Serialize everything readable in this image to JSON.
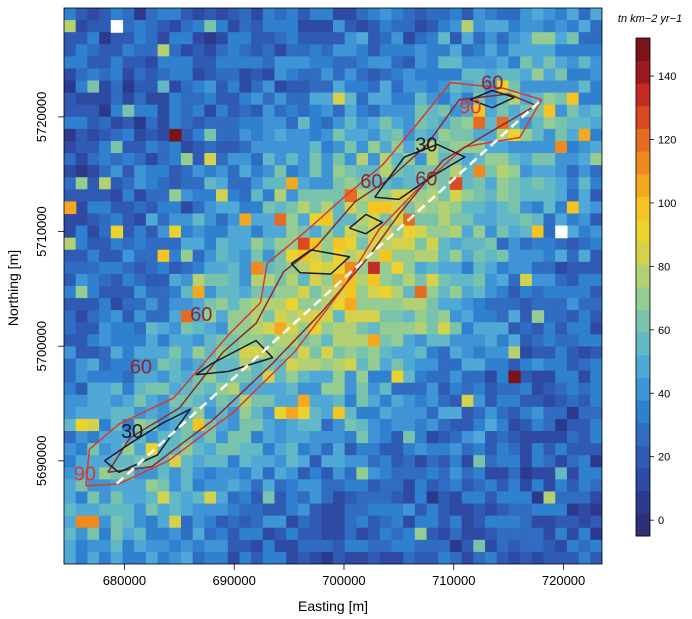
{
  "chart_data": {
    "type": "heatmap",
    "xlabel": "Easting [m]",
    "ylabel": "Northing [m]",
    "xlim": [
      674500,
      723500
    ],
    "ylim": [
      5681000,
      5729500
    ],
    "x_ticks": [
      680000,
      690000,
      700000,
      710000,
      720000
    ],
    "x_tick_labels": [
      "680000",
      "690000",
      "700000",
      "710000",
      "720000"
    ],
    "y_ticks": [
      5690000,
      5700000,
      5710000,
      5720000
    ],
    "y_tick_labels": [
      "5690000",
      "5700000",
      "5710000",
      "5720000"
    ],
    "colorbar": {
      "title": "tn km−2 yr−1",
      "min": -5,
      "max": 152,
      "ticks": [
        0,
        20,
        40,
        60,
        80,
        100,
        120,
        140
      ],
      "tick_labels": [
        "0",
        "20",
        "40",
        "60",
        "80",
        "100",
        "120",
        "140"
      ],
      "colors": [
        "#2e2f78",
        "#2c3a8e",
        "#2e4aa3",
        "#2f5bb4",
        "#2f6cc2",
        "#2f80cf",
        "#3f94d6",
        "#4fa8d6",
        "#62b8c4",
        "#79c3ad",
        "#94cc92",
        "#b3d072",
        "#d4d24d",
        "#ecd22e",
        "#f5c423",
        "#f4a820",
        "#ef8a1f",
        "#e56a22",
        "#d84a24",
        "#c52a25",
        "#9c1a1e",
        "#7a141a"
      ]
    },
    "grid_cells": {
      "x_count": 46,
      "y_count": 46,
      "background_mean": 22,
      "hotspots": [
        {
          "x": 684800,
          "y": 5718800,
          "value": 150
        },
        {
          "x": 709800,
          "y": 5714300,
          "value": 130
        },
        {
          "x": 715800,
          "y": 5697300,
          "value": 145
        },
        {
          "x": 717300,
          "y": 5702300,
          "value": 70
        },
        {
          "x": 691800,
          "y": 5706800,
          "value": 115
        },
        {
          "x": 674800,
          "y": 5711800,
          "value": 105
        },
        {
          "x": 679800,
          "y": 5709800,
          "value": 90
        },
        {
          "x": 700800,
          "y": 5712800,
          "value": 120
        }
      ],
      "missing": [
        {
          "x": 679800,
          "y": 5728000
        },
        {
          "x": 719800,
          "y": 5709800
        }
      ]
    },
    "ridge_line": {
      "color": "#ffffff",
      "points": [
        [
          679300,
          5688000
        ],
        [
          718000,
          5721500
        ]
      ]
    },
    "contours": [
      {
        "level": "90",
        "color": "#d83a2e",
        "points": [
          [
            676500,
            5687800
          ],
          [
            676800,
            5691000
          ],
          [
            679500,
            5693200
          ],
          [
            684500,
            5695500
          ],
          [
            689500,
            5701000
          ],
          [
            692400,
            5703800
          ],
          [
            693000,
            5707200
          ],
          [
            696500,
            5710000
          ],
          [
            700000,
            5713000
          ],
          [
            703500,
            5715800
          ],
          [
            706500,
            5719200
          ],
          [
            709700,
            5723000
          ],
          [
            714500,
            5722500
          ],
          [
            718000,
            5721500
          ],
          [
            716000,
            5718200
          ],
          [
            711000,
            5717400
          ],
          [
            706500,
            5713500
          ],
          [
            703200,
            5710200
          ],
          [
            700000,
            5705200
          ],
          [
            695500,
            5699500
          ],
          [
            690000,
            5694300
          ],
          [
            684000,
            5690000
          ],
          [
            679500,
            5688000
          ],
          [
            676500,
            5687800
          ]
        ]
      },
      {
        "level": "60",
        "color": "#8c2a2a",
        "points": [
          [
            678500,
            5689000
          ],
          [
            680500,
            5692000
          ],
          [
            685000,
            5694600
          ],
          [
            689000,
            5699500
          ],
          [
            692000,
            5702000
          ],
          [
            694500,
            5706500
          ],
          [
            697500,
            5708700
          ],
          [
            701000,
            5712600
          ],
          [
            704000,
            5714500
          ],
          [
            707500,
            5717500
          ],
          [
            710500,
            5721500
          ],
          [
            715000,
            5722000
          ],
          [
            717500,
            5721000
          ],
          [
            713000,
            5718500
          ],
          [
            709000,
            5716200
          ],
          [
            705000,
            5711500
          ],
          [
            702000,
            5707500
          ],
          [
            698000,
            5703000
          ],
          [
            693500,
            5698500
          ],
          [
            688000,
            5693500
          ],
          [
            682500,
            5689500
          ],
          [
            678500,
            5689000
          ]
        ]
      },
      {
        "level": "30",
        "color": "#1a1a2a",
        "points": [
          [
            678200,
            5690000
          ],
          [
            680500,
            5691500
          ],
          [
            683500,
            5693300
          ],
          [
            686000,
            5694500
          ],
          [
            683000,
            5690500
          ],
          [
            679500,
            5689000
          ],
          [
            678200,
            5690000
          ]
        ]
      },
      {
        "level": "30",
        "color": "#1a1a2a",
        "points": [
          [
            686500,
            5697500
          ],
          [
            688000,
            5698500
          ],
          [
            692000,
            5700500
          ],
          [
            693500,
            5699000
          ],
          [
            689500,
            5697800
          ],
          [
            686500,
            5697500
          ]
        ]
      },
      {
        "level": "30",
        "color": "#1a1a2a",
        "points": [
          [
            695200,
            5707200
          ],
          [
            697000,
            5708400
          ],
          [
            700500,
            5707800
          ],
          [
            698800,
            5706300
          ],
          [
            696000,
            5706400
          ],
          [
            695200,
            5707200
          ]
        ]
      },
      {
        "level": "30",
        "color": "#1a1a2a",
        "points": [
          [
            700500,
            5710300
          ],
          [
            702000,
            5711500
          ],
          [
            703500,
            5710800
          ],
          [
            702000,
            5709800
          ],
          [
            700500,
            5710300
          ]
        ]
      },
      {
        "level": "30",
        "color": "#1a1a2a",
        "points": [
          [
            702800,
            5713000
          ],
          [
            705500,
            5716500
          ],
          [
            708500,
            5717600
          ],
          [
            711000,
            5716500
          ],
          [
            708000,
            5714800
          ],
          [
            705000,
            5712800
          ],
          [
            702800,
            5713000
          ]
        ]
      },
      {
        "level": "30",
        "color": "#1a1a2a",
        "points": [
          [
            711500,
            5721500
          ],
          [
            713500,
            5722300
          ],
          [
            715500,
            5721700
          ],
          [
            713500,
            5720800
          ],
          [
            711500,
            5721500
          ]
        ]
      }
    ],
    "contour_labels": [
      {
        "text": "90",
        "x": 676400,
        "y": 5688300,
        "color": "#d83a2e"
      },
      {
        "text": "60",
        "x": 681500,
        "y": 5697600,
        "color": "#8c2a2a"
      },
      {
        "text": "60",
        "x": 687000,
        "y": 5702200,
        "color": "#8c2a2a"
      },
      {
        "text": "30",
        "x": 680700,
        "y": 5692000,
        "color": "#1a1a2a"
      },
      {
        "text": "30",
        "x": 707500,
        "y": 5717000,
        "color": "#1a1a2a"
      },
      {
        "text": "60",
        "x": 702500,
        "y": 5713800,
        "color": "#8c2a2a"
      },
      {
        "text": "60",
        "x": 707500,
        "y": 5714000,
        "color": "#8c2a2a"
      },
      {
        "text": "60",
        "x": 713500,
        "y": 5722400,
        "color": "#8c2a2a"
      },
      {
        "text": "90",
        "x": 711500,
        "y": 5720300,
        "color": "#d83a2e"
      }
    ]
  }
}
